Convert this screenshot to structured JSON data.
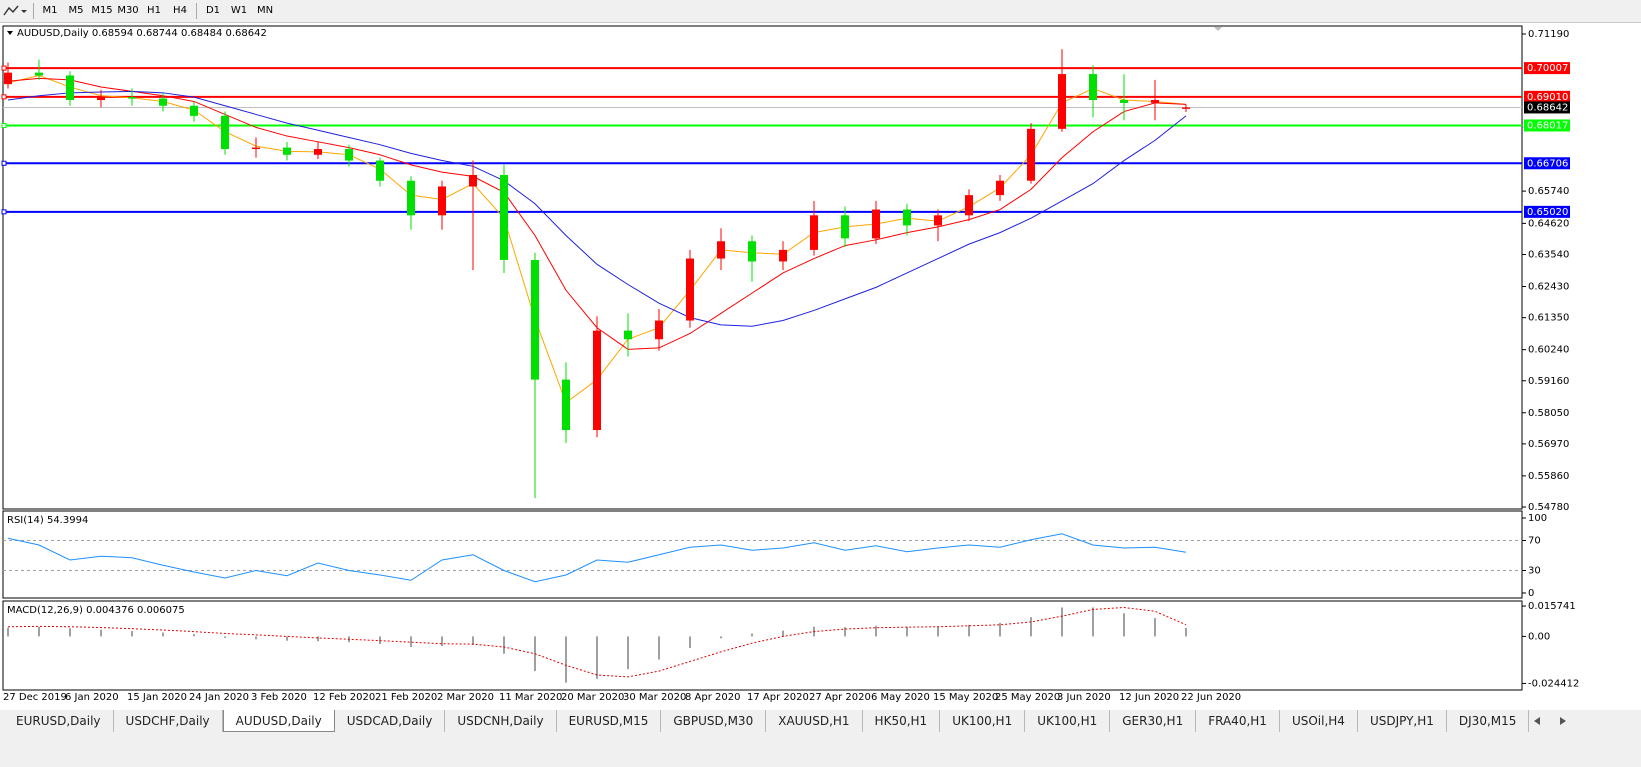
{
  "toolbar": {
    "timeframes": [
      "M1",
      "M5",
      "M15",
      "M30",
      "H1",
      "H4",
      "D1",
      "W1",
      "MN"
    ]
  },
  "chart_data": [
    {
      "type": "candlestick",
      "title": "AUDUSD,Daily  0.68594 0.68744 0.68484 0.68642",
      "categories": [
        "27 Dec 2019",
        null,
        "6 Jan 2020",
        null,
        "15 Jan 2020",
        null,
        "24 Jan 2020",
        null,
        "3 Feb 2020",
        null,
        "12 Feb 2020",
        null,
        "21 Feb 2020",
        null,
        "2 Mar 2020",
        null,
        "11 Mar 2020",
        null,
        "20 Mar 2020",
        null,
        "30 Mar 2020",
        null,
        "8 Apr 2020",
        null,
        "17 Apr 2020",
        null,
        "27 Apr 2020",
        null,
        "6 May 2020",
        null,
        "15 May 2020",
        null,
        "25 May 2020",
        null,
        "3 Jun 2020",
        null,
        "12 Jun 2020",
        null,
        "22 Jun 2020"
      ],
      "open": [
        0.6945,
        0.6985,
        0.6975,
        0.689,
        0.69,
        0.6895,
        0.687,
        0.6835,
        0.672,
        0.6725,
        0.67,
        0.672,
        0.668,
        0.661,
        0.649,
        0.659,
        0.663,
        0.6335,
        0.592,
        0.5745,
        0.609,
        0.606,
        0.6125,
        0.634,
        0.64,
        0.633,
        0.637,
        0.649,
        0.641,
        0.651,
        0.6455,
        0.649,
        0.656,
        0.661,
        0.679,
        0.698,
        0.689,
        0.688,
        0.68594
      ],
      "high": [
        0.702,
        0.703,
        0.699,
        0.6925,
        0.693,
        0.6915,
        0.6885,
        0.685,
        0.676,
        0.6745,
        0.6745,
        0.6735,
        0.669,
        0.6625,
        0.661,
        0.668,
        0.6665,
        0.636,
        0.598,
        0.614,
        0.615,
        0.6165,
        0.637,
        0.6445,
        0.642,
        0.64,
        0.654,
        0.652,
        0.654,
        0.653,
        0.651,
        0.658,
        0.663,
        0.681,
        0.7066,
        0.701,
        0.698,
        0.696,
        0.68744
      ],
      "low": [
        0.693,
        0.696,
        0.687,
        0.6865,
        0.687,
        0.685,
        0.6815,
        0.67,
        0.669,
        0.668,
        0.6685,
        0.666,
        0.659,
        0.644,
        0.644,
        0.63,
        0.629,
        0.5509,
        0.57,
        0.572,
        0.6,
        0.602,
        0.61,
        0.63,
        0.626,
        0.63,
        0.635,
        0.638,
        0.639,
        0.642,
        0.64,
        0.647,
        0.654,
        0.66,
        0.678,
        0.683,
        0.682,
        0.682,
        0.68484
      ],
      "close": [
        0.6985,
        0.6975,
        0.689,
        0.69,
        0.6895,
        0.687,
        0.6835,
        0.672,
        0.6725,
        0.67,
        0.672,
        0.668,
        0.661,
        0.649,
        0.659,
        0.663,
        0.6335,
        0.592,
        0.5745,
        0.609,
        0.606,
        0.6125,
        0.634,
        0.64,
        0.633,
        0.637,
        0.649,
        0.641,
        0.651,
        0.6455,
        0.649,
        0.656,
        0.661,
        0.679,
        0.698,
        0.689,
        0.688,
        0.689,
        0.68642
      ],
      "up_color": "#ff0000",
      "down_color": "#00e000",
      "ma_lines": [
        {
          "color": "#ffa500",
          "values": [
            0.695,
            0.6975,
            0.6935,
            0.6905,
            0.6898,
            0.6885,
            0.6855,
            0.678,
            0.673,
            0.6712,
            0.671,
            0.67,
            0.665,
            0.656,
            0.6545,
            0.66,
            0.648,
            0.613,
            0.584,
            0.592,
            0.606,
            0.61,
            0.623,
            0.637,
            0.636,
            0.6355,
            0.643,
            0.645,
            0.646,
            0.648,
            0.647,
            0.652,
            0.6585,
            0.67,
            0.688,
            0.693,
            0.689,
            0.6885,
            0.6875
          ]
        },
        {
          "color": "#ff0000",
          "values": [
            0.6955,
            0.6965,
            0.696,
            0.6935,
            0.692,
            0.6905,
            0.6885,
            0.684,
            0.6795,
            0.6765,
            0.6745,
            0.6725,
            0.67,
            0.6665,
            0.664,
            0.6625,
            0.657,
            0.642,
            0.623,
            0.61,
            0.6025,
            0.603,
            0.608,
            0.615,
            0.622,
            0.629,
            0.634,
            0.6385,
            0.6405,
            0.643,
            0.645,
            0.6475,
            0.651,
            0.658,
            0.669,
            0.678,
            0.685,
            0.688,
            0.6875
          ]
        },
        {
          "color": "#2020e0",
          "values": [
            0.689,
            0.6905,
            0.6915,
            0.6918,
            0.692,
            0.6915,
            0.69,
            0.687,
            0.684,
            0.681,
            0.6785,
            0.676,
            0.6735,
            0.6705,
            0.668,
            0.666,
            0.661,
            0.653,
            0.642,
            0.632,
            0.625,
            0.6185,
            0.6135,
            0.611,
            0.6105,
            0.6125,
            0.616,
            0.62,
            0.624,
            0.629,
            0.634,
            0.639,
            0.643,
            0.648,
            0.654,
            0.66,
            0.668,
            0.675,
            0.6835
          ]
        }
      ],
      "levels": [
        {
          "value": 0.70007,
          "color": "#ff0000"
        },
        {
          "value": 0.6901,
          "label": "0.69010",
          "color": "#ff0000"
        },
        {
          "value": 0.68017,
          "color": "#00ff00"
        },
        {
          "value": 0.66706,
          "color": "#0000ff"
        },
        {
          "value": 0.6502,
          "label": "0.65020",
          "color": "#0000ff"
        }
      ],
      "ylim": [
        0.54711,
        0.71468
      ],
      "yticks": [
        {
          "value": 0.7119,
          "label": "0.71190"
        },
        {
          "value": 0.6574,
          "label": "0.65740"
        },
        {
          "value": 0.6462,
          "label": "0.64620"
        },
        {
          "value": 0.6354,
          "label": "0.63540"
        },
        {
          "value": 0.6243,
          "label": "0.62430"
        },
        {
          "value": 0.6135,
          "label": "0.61350"
        },
        {
          "value": 0.6024,
          "label": "0.60240"
        },
        {
          "value": 0.5916,
          "label": "0.59160"
        },
        {
          "value": 0.5805,
          "label": "0.58050"
        },
        {
          "value": 0.5697,
          "label": "0.56970"
        },
        {
          "value": 0.5586,
          "label": "0.55860"
        },
        {
          "value": 0.5478,
          "label": "0.54780"
        }
      ]
    },
    {
      "type": "line",
      "title": "RSI(14) 54.3994",
      "color": "#1e90ff",
      "values": [
        73,
        64,
        44,
        49,
        47,
        37,
        28,
        20,
        30,
        23,
        40,
        30,
        24,
        17,
        44,
        51,
        30,
        15,
        24,
        44,
        41,
        51,
        61,
        64,
        57,
        60,
        67,
        57,
        63,
        55,
        60,
        64,
        61,
        71,
        79,
        64,
        60,
        61,
        54.3994
      ],
      "levels": [
        70,
        30
      ],
      "ylim": [
        -6.67,
        109.33
      ],
      "yticks": [
        100,
        70,
        30,
        0
      ]
    },
    {
      "type": "macd",
      "title": "MACD(12,26,9) 0.004376 0.006075",
      "color": "#a0a0a0",
      "signal_color": "#e00000",
      "histogram": [
        0.0045,
        0.005,
        0.0042,
        0.0035,
        0.0028,
        0.002,
        0.0012,
        -0.0008,
        -0.0015,
        -0.0022,
        -0.0025,
        -0.003,
        -0.004,
        -0.0055,
        -0.005,
        -0.0045,
        -0.009,
        -0.018,
        -0.024,
        -0.022,
        -0.017,
        -0.012,
        -0.006,
        -0.001,
        0.0015,
        0.003,
        0.005,
        0.0048,
        0.0055,
        0.005,
        0.0052,
        0.006,
        0.007,
        0.01,
        0.015,
        0.015,
        0.012,
        0.0095,
        0.004376
      ],
      "signal": [
        0.005,
        0.0052,
        0.005,
        0.0046,
        0.004,
        0.0033,
        0.0025,
        0.0015,
        0.0008,
        0.0,
        -0.0008,
        -0.0015,
        -0.0022,
        -0.003,
        -0.0038,
        -0.004,
        -0.0055,
        -0.009,
        -0.015,
        -0.02,
        -0.021,
        -0.018,
        -0.013,
        -0.008,
        -0.0035,
        0.0,
        0.0025,
        0.0038,
        0.0045,
        0.0048,
        0.005,
        0.0055,
        0.006,
        0.0075,
        0.0105,
        0.014,
        0.015,
        0.013,
        0.006075
      ],
      "ylim": [
        -0.027809,
        0.018364
      ],
      "yticks": [
        0.015741,
        {
          "value": 0,
          "label": "0.00"
        },
        -0.024412
      ]
    }
  ],
  "tabs": {
    "items": [
      "EURUSD,Daily",
      "USDCHF,Daily",
      "AUDUSD,Daily",
      "USDCAD,Daily",
      "USDCNH,Daily",
      "EURUSD,M15",
      "GBPUSD,M30",
      "XAUUSD,H1",
      "HK50,H1",
      "UK100,H1",
      "UK100,H1",
      "GER30,H1",
      "FRA40,H1",
      "USOil,H4",
      "USDJPY,H1",
      "DJ30,M15"
    ],
    "active": 2
  }
}
